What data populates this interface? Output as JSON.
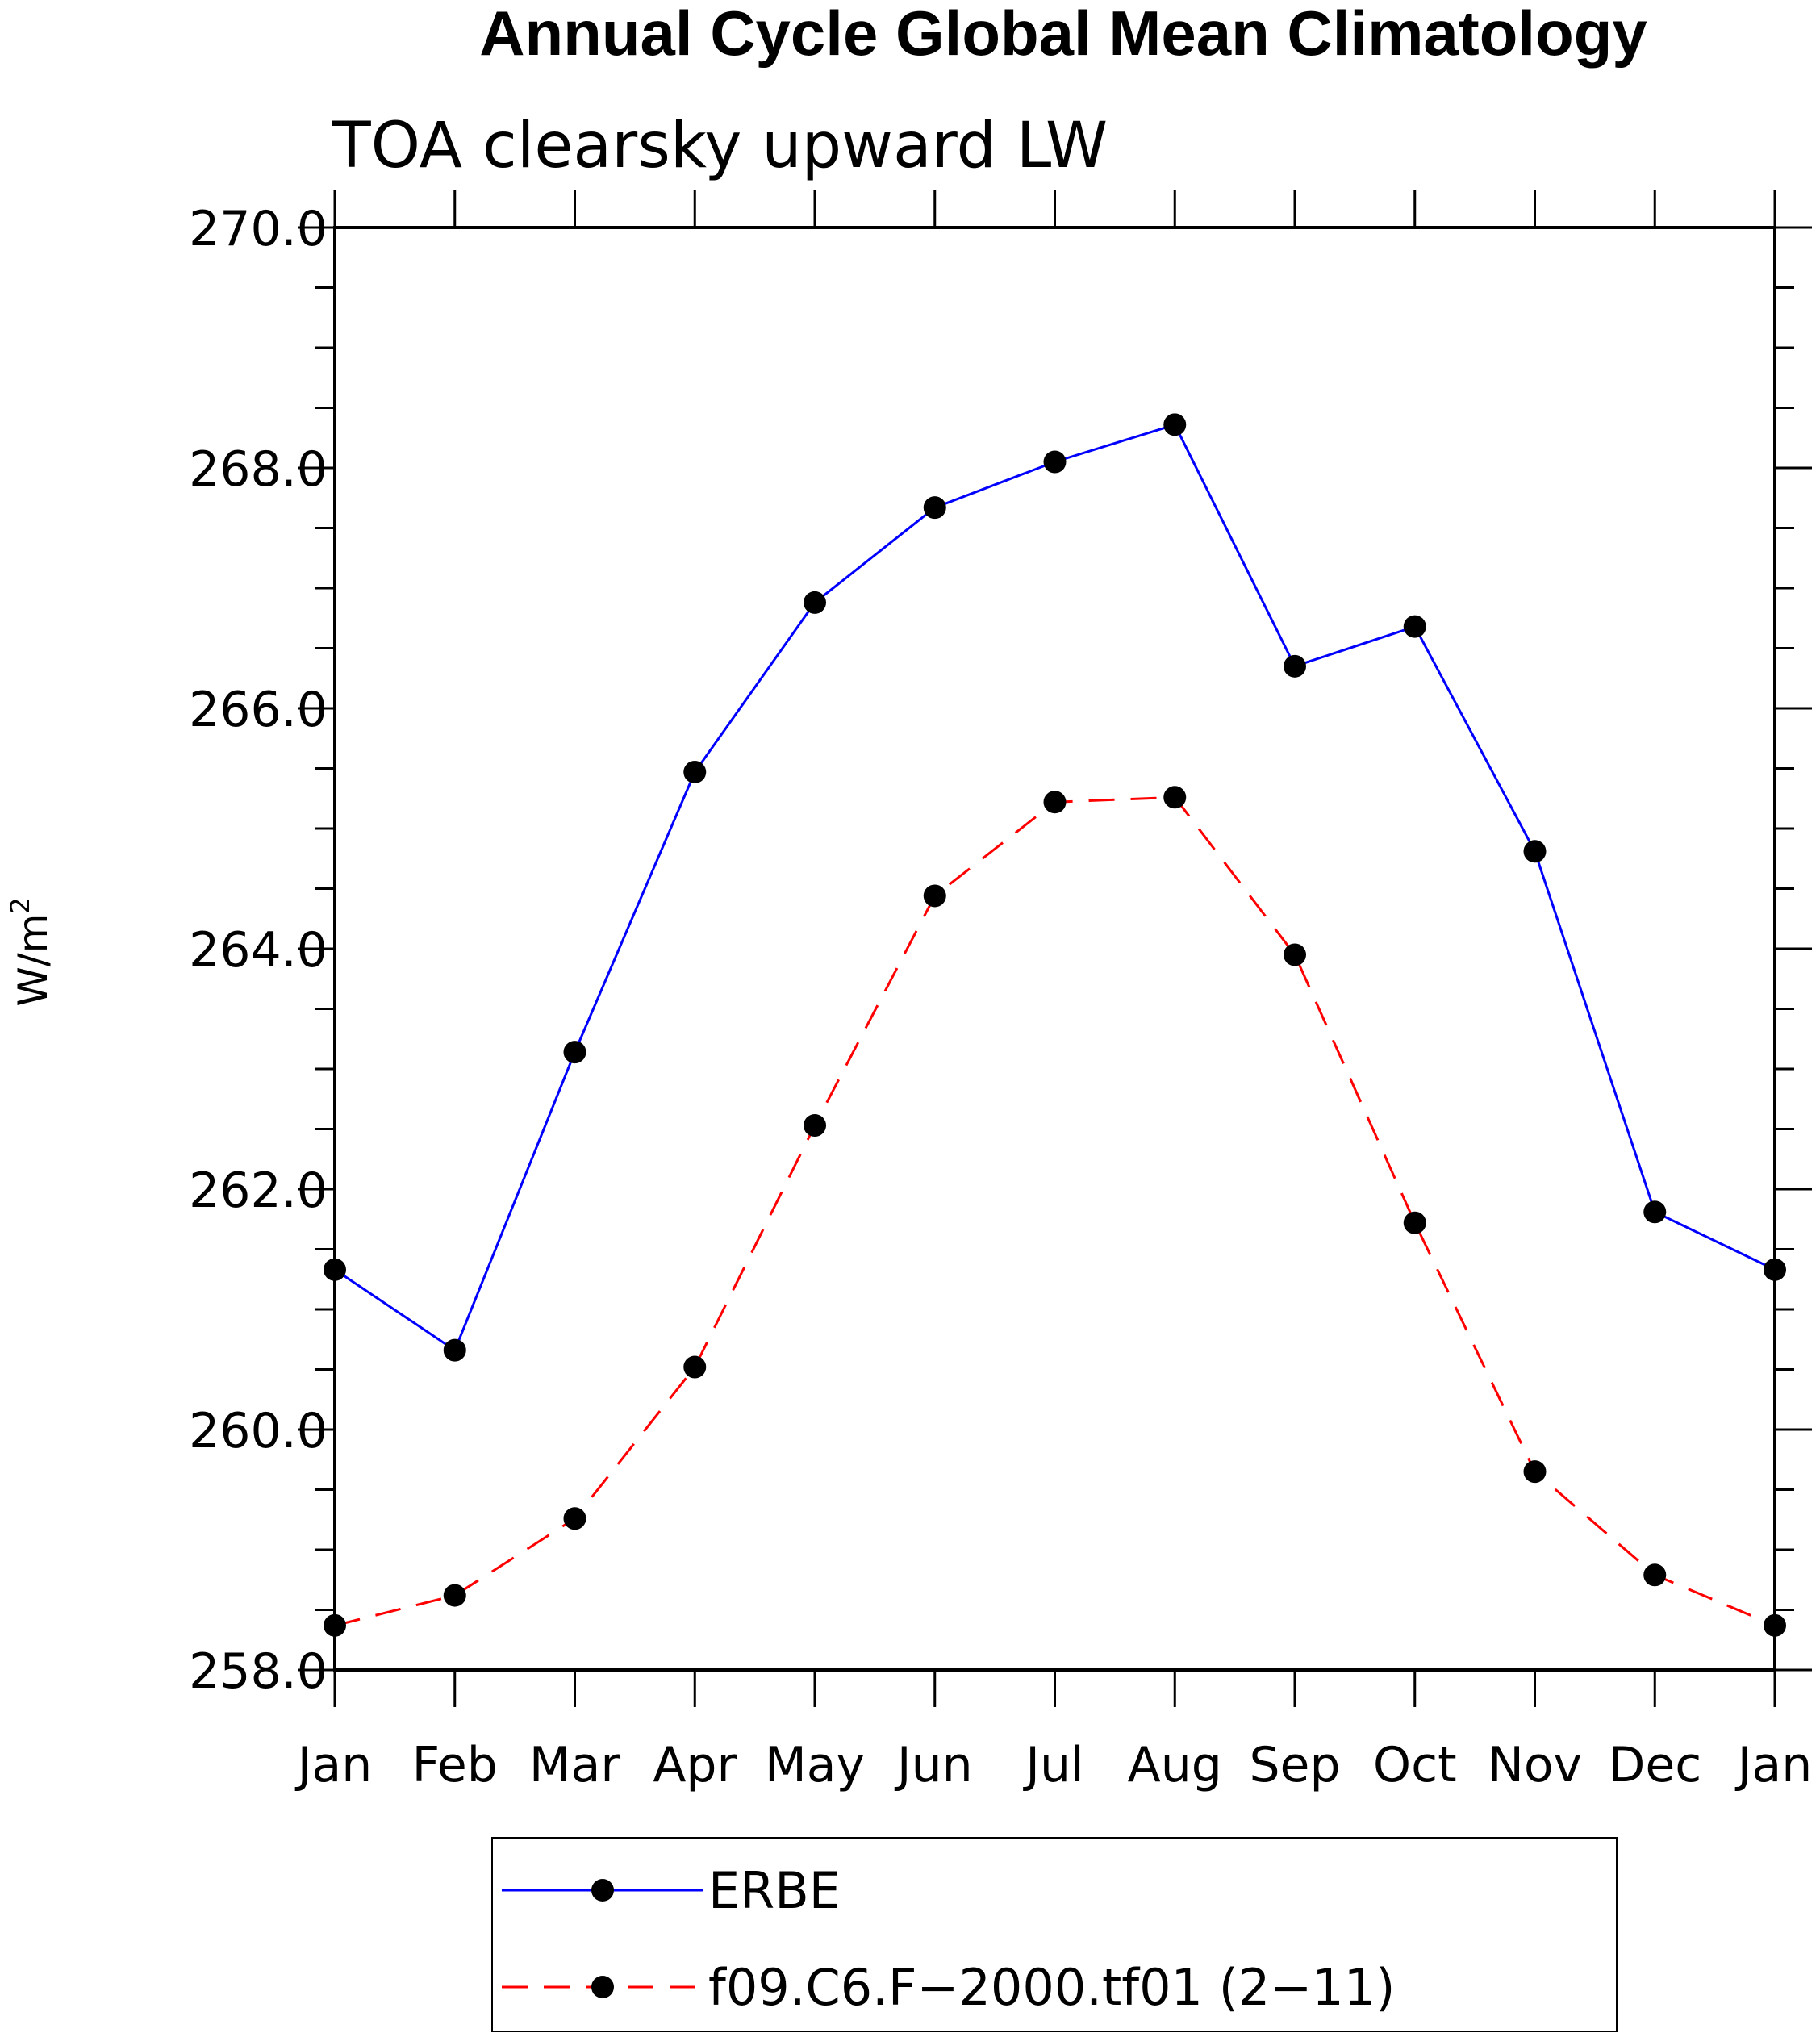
{
  "chart_data": {
    "type": "line",
    "title": "Annual Cycle Global Mean Climatology",
    "subtitle": "TOA clearsky upward LW",
    "ylabel": "W/m",
    "ylabel_sup": "2",
    "xlabel": "",
    "categories": [
      "Jan",
      "Feb",
      "Mar",
      "Apr",
      "May",
      "Jun",
      "Jul",
      "Aug",
      "Sep",
      "Oct",
      "Nov",
      "Dec",
      "Jan"
    ],
    "ylim": [
      258.0,
      270.0
    ],
    "yticks": [
      "258.0",
      "260.0",
      "262.0",
      "264.0",
      "266.0",
      "268.0",
      "270.0"
    ],
    "grid": false,
    "legend_position": "bottom-center",
    "series": [
      {
        "name": "ERBE",
        "color": "#0000ff",
        "dash": "solid",
        "values": [
          261.33,
          260.66,
          263.14,
          265.47,
          266.88,
          267.67,
          268.05,
          268.36,
          266.35,
          266.68,
          264.81,
          261.81,
          261.33
        ]
      },
      {
        "name": "f09.C6.F−2000.tf01 (2−11)",
        "color": "#ff0000",
        "dash": "dashed",
        "values": [
          258.37,
          258.62,
          259.26,
          260.52,
          262.53,
          264.44,
          265.22,
          265.26,
          263.95,
          261.72,
          259.65,
          258.79,
          258.37
        ]
      }
    ]
  }
}
